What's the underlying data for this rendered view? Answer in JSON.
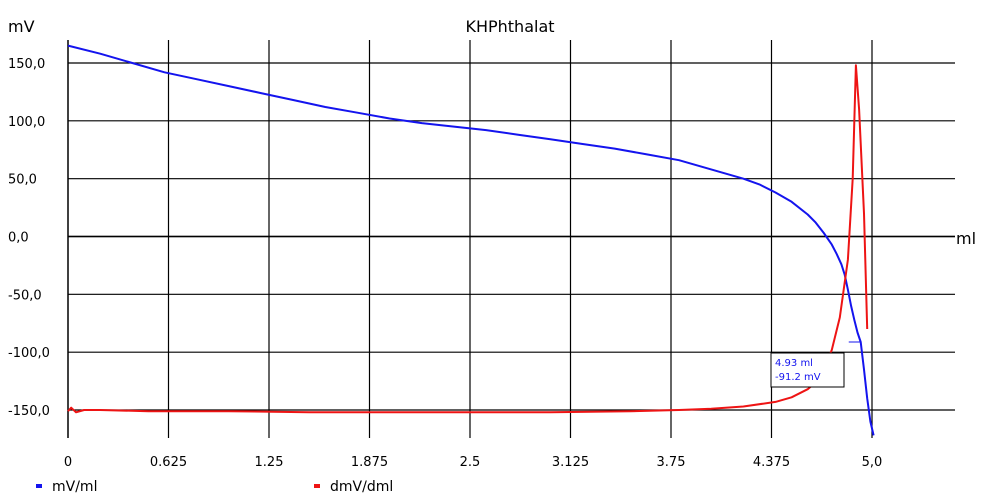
{
  "chart_data": {
    "type": "line",
    "title": "KHPhthalat",
    "ylabel": "mV",
    "xlabel": "ml",
    "xlim": [
      0,
      5.0
    ],
    "ylim": [
      -165,
      170
    ],
    "x_ticks": [
      0,
      0.625,
      1.25,
      1.875,
      2.5,
      3.125,
      3.75,
      4.375,
      5.0
    ],
    "x_tick_labels": [
      "0",
      "0.625",
      "1.25",
      "1.875",
      "2.5",
      "3.125",
      "3.75",
      "4.375",
      "5,0"
    ],
    "y_ticks": [
      150,
      100,
      50,
      0,
      -50,
      -100,
      -150
    ],
    "y_tick_labels": [
      "150,0",
      "100,0",
      "50,0",
      "0,0",
      "-50,0",
      "-100,0",
      "-150,0"
    ],
    "grid": true,
    "legend_position": "bottom-left",
    "series": [
      {
        "name": "mV/ml",
        "color": "#1414ee",
        "x": [
          0,
          0.2,
          0.4,
          0.6,
          0.8,
          1.0,
          1.2,
          1.4,
          1.6,
          1.8,
          2.0,
          2.2,
          2.4,
          2.6,
          2.8,
          3.0,
          3.2,
          3.4,
          3.6,
          3.8,
          4.0,
          4.2,
          4.3,
          4.4,
          4.5,
          4.6,
          4.65,
          4.7,
          4.75,
          4.78,
          4.81,
          4.83,
          4.85,
          4.87,
          4.89,
          4.91,
          4.93,
          4.95,
          4.97,
          4.99,
          5.01
        ],
        "y": [
          165,
          158,
          150,
          142,
          136,
          130,
          124,
          118,
          112,
          107,
          102,
          98,
          95,
          92,
          88,
          84,
          80,
          76,
          71,
          66,
          58,
          50,
          45,
          38,
          30,
          19,
          12,
          3,
          -7,
          -15,
          -24,
          -33,
          -46,
          -60,
          -72,
          -83,
          -91.2,
          -115,
          -140,
          -160,
          -172
        ]
      },
      {
        "name": "dmV/dml",
        "color": "#ee1414",
        "x": [
          0,
          0.02,
          0.05,
          0.1,
          0.2,
          0.5,
          1.0,
          1.5,
          2.0,
          2.5,
          3.0,
          3.5,
          3.8,
          4.0,
          4.2,
          4.4,
          4.5,
          4.6,
          4.65,
          4.7,
          4.75,
          4.8,
          4.85,
          4.88,
          4.9,
          4.92,
          4.95,
          4.97
        ],
        "y": [
          -151,
          -148,
          -152,
          -150,
          -150,
          -151,
          -151,
          -152,
          -152,
          -152,
          -152,
          -151,
          -150,
          -149,
          -147,
          -143,
          -139,
          -132,
          -126,
          -115,
          -98,
          -70,
          -20,
          50,
          148,
          110,
          20,
          -80
        ]
      }
    ],
    "annotations": [
      {
        "x": 4.93,
        "y": -91.2,
        "lines": [
          "4.93 ml",
          "-91.2 mV"
        ]
      }
    ]
  }
}
